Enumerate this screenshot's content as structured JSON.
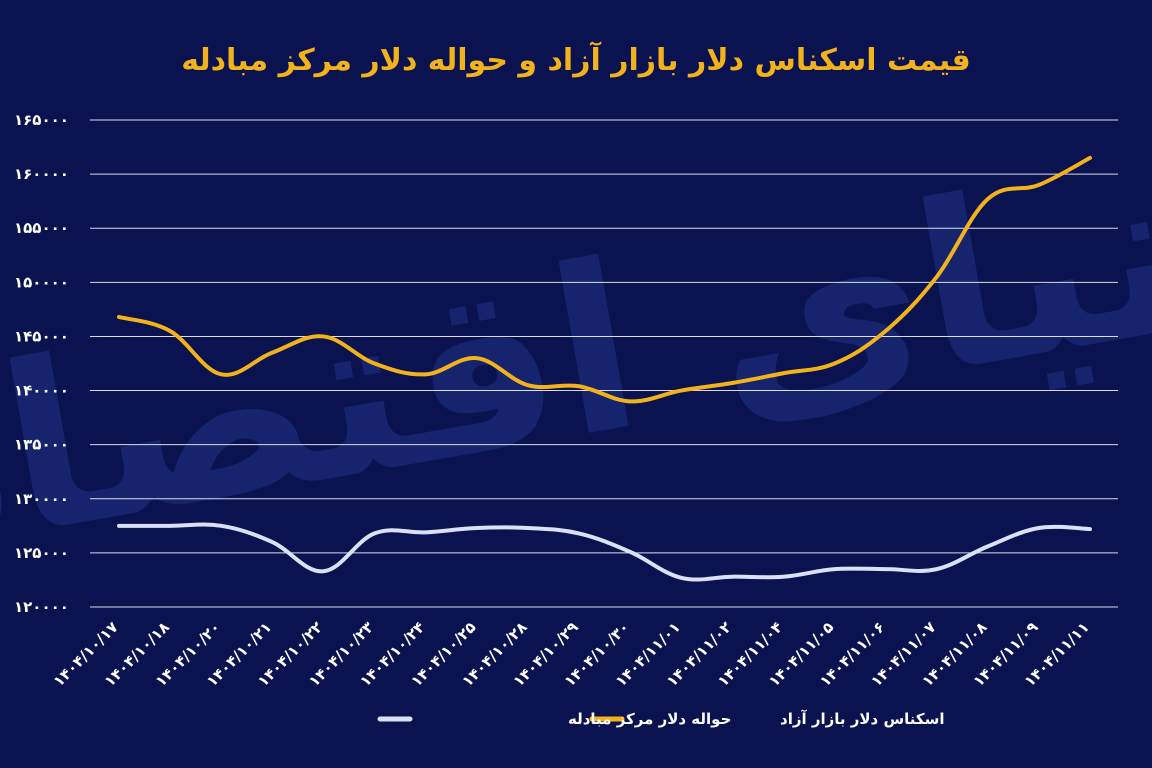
{
  "chart_data": {
    "type": "line",
    "title": "قیمت اسکناس دلار بازار آزاد و حواله دلار مرکز مبادله",
    "xlabel": "",
    "ylabel": "",
    "ylim": [
      120000,
      165000
    ],
    "yticks": [
      120000,
      125000,
      130000,
      135000,
      140000,
      145000,
      150000,
      155000,
      160000,
      165000
    ],
    "ytick_labels": [
      "۱۲۰۰۰۰",
      "۱۲۵۰۰۰",
      "۱۳۰۰۰۰",
      "۱۳۵۰۰۰",
      "۱۴۰۰۰۰",
      "۱۴۵۰۰۰",
      "۱۵۰۰۰۰",
      "۱۵۵۰۰۰",
      "۱۶۰۰۰۰",
      "۱۶۵۰۰۰"
    ],
    "categories": [
      "۱۴۰۴/۱۰/۱۷",
      "۱۴۰۴/۱۰/۱۸",
      "۱۴۰۴/۱۰/۲۰",
      "۱۴۰۴/۱۰/۲۱",
      "۱۴۰۴/۱۰/۲۲",
      "۱۴۰۴/۱۰/۲۳",
      "۱۴۰۴/۱۰/۲۴",
      "۱۴۰۴/۱۰/۲۵",
      "۱۴۰۴/۱۰/۲۸",
      "۱۴۰۴/۱۰/۲۹",
      "۱۴۰۴/۱۰/۳۰",
      "۱۴۰۴/۱۱/۰۱",
      "۱۴۰۴/۱۱/۰۲",
      "۱۴۰۴/۱۱/۰۴",
      "۱۴۰۴/۱۱/۰۵",
      "۱۴۰۴/۱۱/۰۶",
      "۱۴۰۴/۱۱/۰۷",
      "۱۴۰۴/۱۱/۰۸",
      "۱۴۰۴/۱۱/۰۹",
      "۱۴۰۴/۱۱/۱۱"
    ],
    "series": [
      {
        "name": "اسکناس دلار بازار آزاد",
        "color": "#f2b21c",
        "values": [
          146800,
          145500,
          141500,
          143500,
          145000,
          142500,
          141500,
          143000,
          140500,
          140400,
          139000,
          140000,
          140700,
          141600,
          142500,
          145500,
          150500,
          157700,
          159000,
          161500
        ]
      },
      {
        "name": "حواله دلار مرکز مبادله",
        "color": "#d9e1f7",
        "values": [
          127500,
          127500,
          127500,
          126000,
          123300,
          126800,
          126900,
          127300,
          127300,
          126800,
          125100,
          122700,
          122800,
          122800,
          123500,
          123500,
          123500,
          125600,
          127300,
          127200
        ]
      }
    ],
    "legend": [
      {
        "label": "اسکناس دلار بازار آزاد",
        "color": "#f2b21c"
      },
      {
        "label": "حواله دلار مرکز مبادله",
        "color": "#d9e1f7"
      }
    ],
    "legend_position": "bottom-center",
    "grid": true,
    "watermark": "دنیای اقتصاد",
    "background": "#0a1250"
  }
}
